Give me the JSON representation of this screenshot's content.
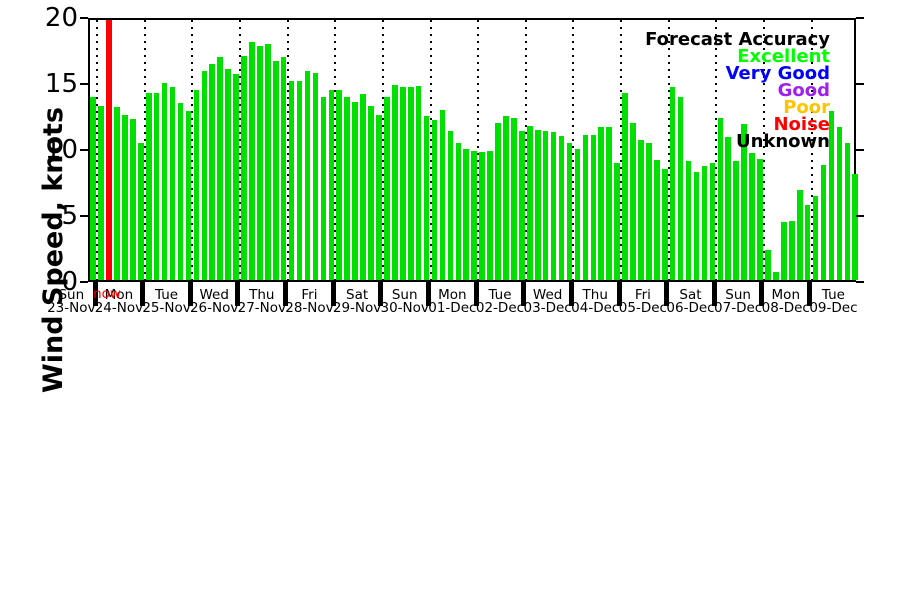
{
  "page": {
    "background": "#ffffff"
  },
  "chart_data": {
    "type": "bar",
    "title": "",
    "ylabel": "Wind Speed, knots",
    "xlabel": "",
    "ylim": [
      0,
      20
    ],
    "yticks": [
      0,
      5,
      10,
      15,
      20
    ],
    "grid": "vertical dotted lines at day boundaries",
    "bar_color": "#00e000",
    "bars_per_day": 6,
    "bar_interval_hours": 4,
    "legend": {
      "title": "Forecast Accuracy",
      "position": "upper right",
      "entries": [
        {
          "label": "Excellent",
          "color": "#00ff00"
        },
        {
          "label": "Very Good",
          "color": "#0000ff"
        },
        {
          "label": "Good",
          "color": "#a020f0"
        },
        {
          "label": "Poor",
          "color": "#ffc400"
        },
        {
          "label": "Noise",
          "color": "#ff0000"
        },
        {
          "label": "Unknown",
          "color": "#000000"
        }
      ]
    },
    "now_marker": {
      "label": "now",
      "color": "#ff0000",
      "day_index": 1,
      "slot_index": 1
    },
    "days": [
      {
        "weekday": "Sun",
        "date": "23-Nov",
        "values": [
          13.9
        ]
      },
      {
        "weekday": "Mon",
        "date": "24-Nov",
        "values": [
          13.2,
          13.2,
          13.1,
          12.5,
          12.2,
          10.4
        ]
      },
      {
        "weekday": "Tue",
        "date": "25-Nov",
        "values": [
          14.2,
          14.2,
          14.9,
          14.6,
          13.4,
          12.8
        ]
      },
      {
        "weekday": "Wed",
        "date": "26-Nov",
        "values": [
          14.4,
          15.8,
          16.4,
          16.9,
          16.0,
          15.6
        ]
      },
      {
        "weekday": "Thu",
        "date": "27-Nov",
        "values": [
          17.0,
          18.0,
          17.7,
          17.9,
          16.6,
          16.9
        ]
      },
      {
        "weekday": "Fri",
        "date": "28-Nov",
        "values": [
          15.1,
          15.1,
          15.8,
          15.7,
          13.9,
          14.4
        ]
      },
      {
        "weekday": "Sat",
        "date": "29-Nov",
        "values": [
          14.4,
          13.9,
          13.5,
          14.1,
          13.2,
          12.5
        ]
      },
      {
        "weekday": "Sun",
        "date": "30-Nov",
        "values": [
          13.9,
          14.8,
          14.6,
          14.6,
          14.7,
          12.4
        ]
      },
      {
        "weekday": "Mon",
        "date": "01-Dec",
        "values": [
          12.1,
          12.9,
          11.3,
          10.4,
          9.9,
          9.8
        ]
      },
      {
        "weekday": "Tue",
        "date": "02-Dec",
        "values": [
          9.7,
          9.8,
          11.9,
          12.4,
          12.3,
          11.3
        ]
      },
      {
        "weekday": "Wed",
        "date": "03-Dec",
        "values": [
          11.7,
          11.4,
          11.3,
          11.2,
          10.9,
          10.4
        ]
      },
      {
        "weekday": "Thu",
        "date": "04-Dec",
        "values": [
          9.9,
          11.0,
          11.0,
          11.6,
          11.6,
          8.9
        ]
      },
      {
        "weekday": "Fri",
        "date": "05-Dec",
        "values": [
          14.2,
          11.9,
          10.6,
          10.4,
          9.1,
          8.4
        ]
      },
      {
        "weekday": "Sat",
        "date": "06-Dec",
        "values": [
          14.6,
          13.9,
          9.0,
          8.2,
          8.6,
          8.9
        ]
      },
      {
        "weekday": "Sun",
        "date": "07-Dec",
        "values": [
          12.3,
          10.8,
          9.0,
          11.8,
          9.6,
          9.2
        ]
      },
      {
        "weekday": "Mon",
        "date": "08-Dec",
        "values": [
          2.3,
          0.6,
          4.4,
          4.5,
          6.8,
          5.7
        ]
      },
      {
        "weekday": "Tue",
        "date": "09-Dec",
        "values": [
          6.4,
          8.7,
          12.8,
          11.6,
          10.4,
          8.0
        ]
      }
    ]
  }
}
